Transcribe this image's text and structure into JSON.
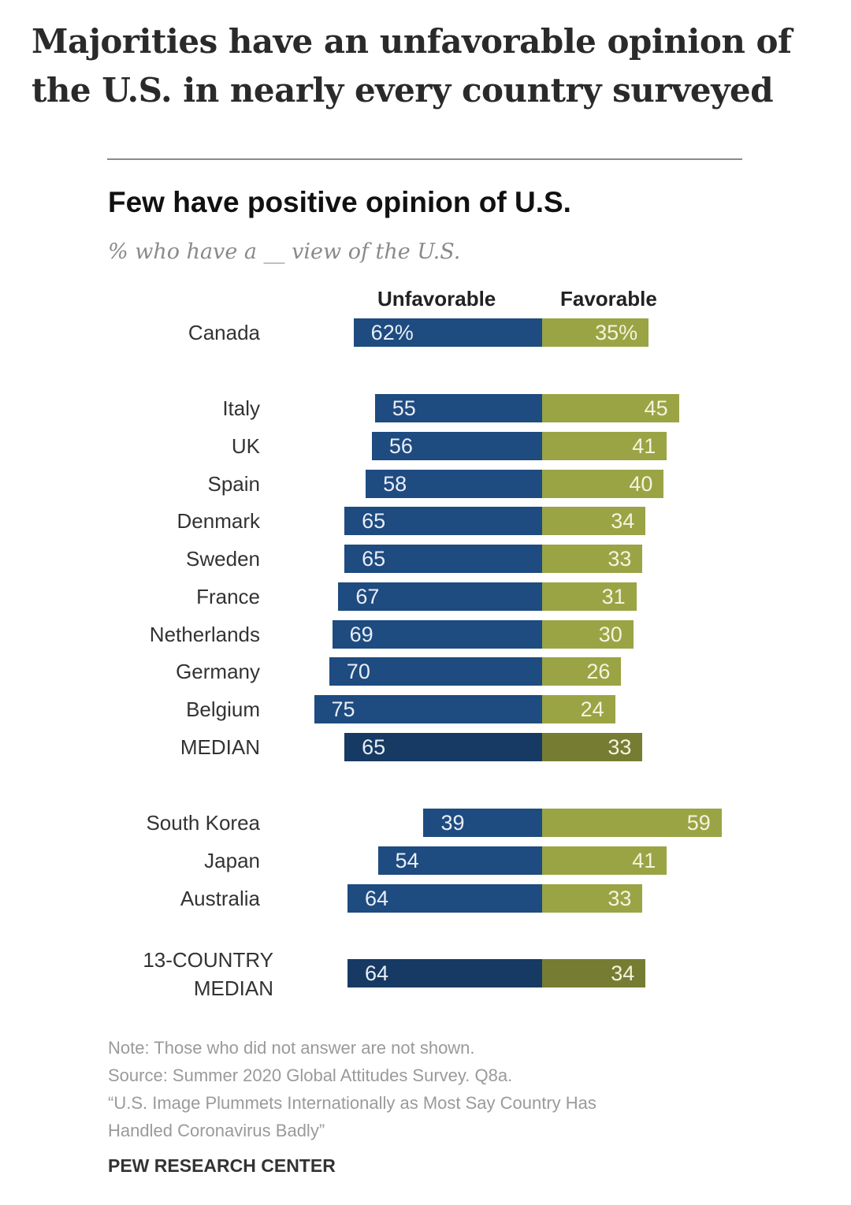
{
  "headline": "Majorities have an unfavorable opinion of the U.S. in nearly every country surveyed",
  "chart_data": {
    "type": "bar",
    "orientation": "horizontal-diverging",
    "title": "Few have positive opinion of U.S.",
    "subtitle": "% who have a __ view of the U.S.",
    "series_labels": {
      "unfavorable": "Unfavorable",
      "favorable": "Favorable"
    },
    "colors": {
      "unfavorable": "#1e4b80",
      "favorable": "#9aa444",
      "unfavorable_median": "#173a64",
      "favorable_median": "#767d33"
    },
    "rows": [
      {
        "label": "Canada",
        "unfavorable": 62,
        "favorable": 35,
        "unfav_text": "62%",
        "fav_text": "35%",
        "group": 0,
        "median": false
      },
      {
        "label": "Italy",
        "unfavorable": 55,
        "favorable": 45,
        "unfav_text": "55",
        "fav_text": "45",
        "group": 1,
        "median": false
      },
      {
        "label": "UK",
        "unfavorable": 56,
        "favorable": 41,
        "unfav_text": "56",
        "fav_text": "41",
        "group": 1,
        "median": false
      },
      {
        "label": "Spain",
        "unfavorable": 58,
        "favorable": 40,
        "unfav_text": "58",
        "fav_text": "40",
        "group": 1,
        "median": false
      },
      {
        "label": "Denmark",
        "unfavorable": 65,
        "favorable": 34,
        "unfav_text": "65",
        "fav_text": "34",
        "group": 1,
        "median": false
      },
      {
        "label": "Sweden",
        "unfavorable": 65,
        "favorable": 33,
        "unfav_text": "65",
        "fav_text": "33",
        "group": 1,
        "median": false
      },
      {
        "label": "France",
        "unfavorable": 67,
        "favorable": 31,
        "unfav_text": "67",
        "fav_text": "31",
        "group": 1,
        "median": false
      },
      {
        "label": "Netherlands",
        "unfavorable": 69,
        "favorable": 30,
        "unfav_text": "69",
        "fav_text": "30",
        "group": 1,
        "median": false
      },
      {
        "label": "Germany",
        "unfavorable": 70,
        "favorable": 26,
        "unfav_text": "70",
        "fav_text": "26",
        "group": 1,
        "median": false
      },
      {
        "label": "Belgium",
        "unfavorable": 75,
        "favorable": 24,
        "unfav_text": "75",
        "fav_text": "24",
        "group": 1,
        "median": false
      },
      {
        "label": "MEDIAN",
        "unfavorable": 65,
        "favorable": 33,
        "unfav_text": "65",
        "fav_text": "33",
        "group": 1,
        "median": true
      },
      {
        "label": "South Korea",
        "unfavorable": 39,
        "favorable": 59,
        "unfav_text": "39",
        "fav_text": "59",
        "group": 2,
        "median": false
      },
      {
        "label": "Japan",
        "unfavorable": 54,
        "favorable": 41,
        "unfav_text": "54",
        "fav_text": "41",
        "group": 2,
        "median": false
      },
      {
        "label": "Australia",
        "unfavorable": 64,
        "favorable": 33,
        "unfav_text": "64",
        "fav_text": "33",
        "group": 2,
        "median": false
      },
      {
        "label": "13-COUNTRY\nMEDIAN",
        "unfavorable": 64,
        "favorable": 34,
        "unfav_text": "64",
        "fav_text": "34",
        "group": 3,
        "median": true
      }
    ],
    "xlim": [
      -75,
      60
    ],
    "grid": false,
    "legend": "top column headers"
  },
  "notes": {
    "note": "Note: Those who did not answer are not shown.",
    "source": "Source: Summer 2020 Global Attitudes Survey. Q8a.",
    "report_line1": "“U.S. Image Plummets Internationally as Most Say Country Has",
    "report_line2": "Handled Coronavirus Badly”"
  },
  "brand": "PEW RESEARCH CENTER"
}
